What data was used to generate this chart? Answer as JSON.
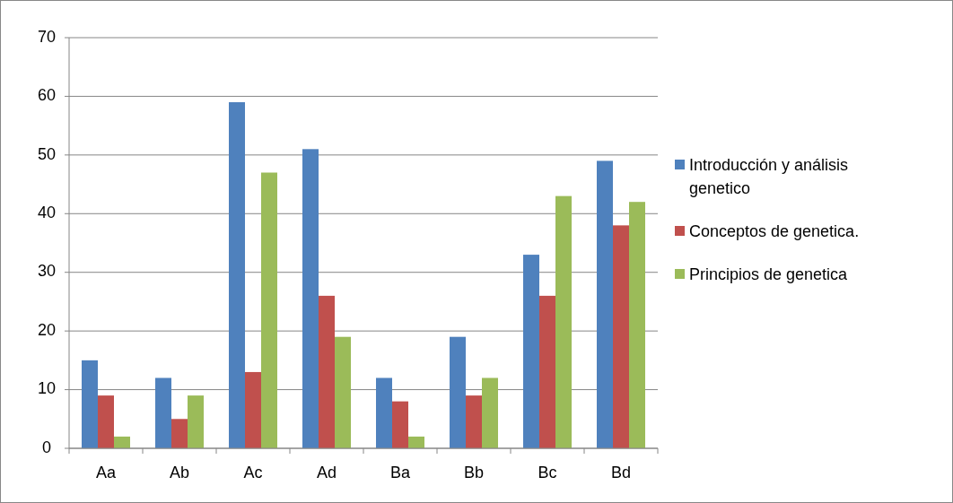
{
  "chart_data": {
    "type": "bar",
    "categories": [
      "Aa",
      "Ab",
      "Ac",
      "Ad",
      "Ba",
      "Bb",
      "Bc",
      "Bd"
    ],
    "series": [
      {
        "name": "Introducción y análisis genetico",
        "color": "#4f81bd",
        "values": [
          15,
          12,
          59,
          51,
          12,
          19,
          33,
          49
        ]
      },
      {
        "name": "Conceptos de genetica.",
        "color": "#c0504d",
        "values": [
          9,
          5,
          13,
          26,
          8,
          9,
          26,
          38
        ]
      },
      {
        "name": "Principios de genetica",
        "color": "#9bbb59",
        "values": [
          2,
          9,
          47,
          19,
          2,
          12,
          43,
          42
        ]
      }
    ],
    "ylim": [
      0,
      70
    ],
    "yticks": [
      0,
      10,
      20,
      30,
      40,
      50,
      60,
      70
    ],
    "grid": "y",
    "legend": "right"
  }
}
